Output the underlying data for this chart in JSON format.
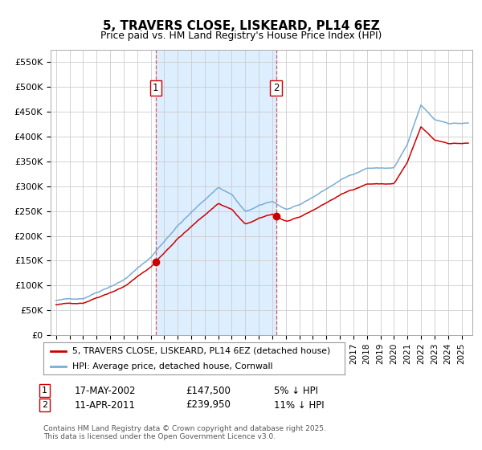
{
  "title": "5, TRAVERS CLOSE, LISKEARD, PL14 6EZ",
  "subtitle": "Price paid vs. HM Land Registry's House Price Index (HPI)",
  "background_color": "#ffffff",
  "shaded_region_color": "#ddeeff",
  "grid_color": "#cccccc",
  "hpi_line_color": "#7aadd4",
  "price_line_color": "#cc0000",
  "sale1_date_label": "17-MAY-2002",
  "sale1_price": 147500,
  "sale1_hpi_pct": "5% ↓ HPI",
  "sale2_date_label": "11-APR-2011",
  "sale2_price": 239950,
  "sale2_hpi_pct": "11% ↓ HPI",
  "legend_label1": "5, TRAVERS CLOSE, LISKEARD, PL14 6EZ (detached house)",
  "legend_label2": "HPI: Average price, detached house, Cornwall",
  "footnote": "Contains HM Land Registry data © Crown copyright and database right 2025.\nThis data is licensed under the Open Government Licence v3.0.",
  "ylim": [
    0,
    575000
  ],
  "yticks": [
    0,
    50000,
    100000,
    150000,
    200000,
    250000,
    300000,
    350000,
    400000,
    450000,
    500000,
    550000
  ],
  "ytick_labels": [
    "£0",
    "£50K",
    "£100K",
    "£150K",
    "£200K",
    "£250K",
    "£300K",
    "£350K",
    "£400K",
    "£450K",
    "£500K",
    "£550K"
  ],
  "sale1_x": 2002.37,
  "sale2_x": 2011.27,
  "hpi_key_years": [
    1995,
    1997,
    2000,
    2002,
    2004,
    2007,
    2008,
    2009,
    2010,
    2011,
    2012,
    2013,
    2014,
    2016,
    2018,
    2020,
    2021,
    2022,
    2023,
    2024,
    2025.5
  ],
  "hpi_key_prices": [
    70000,
    75000,
    115000,
    160000,
    225000,
    302000,
    288000,
    252000,
    263000,
    272000,
    256000,
    262000,
    278000,
    312000,
    338000,
    338000,
    385000,
    462000,
    432000,
    426000,
    426000
  ]
}
